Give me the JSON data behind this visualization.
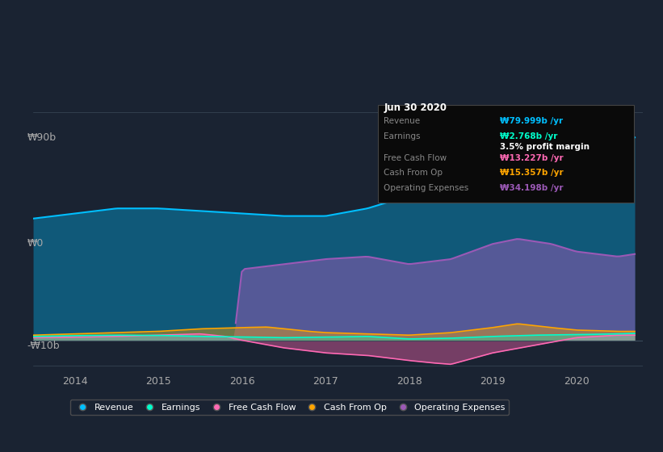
{
  "bg_color": "#1a2332",
  "plot_bg_color": "#1a2332",
  "title": "Jun 30 2020",
  "ylabel_top": "₩90b",
  "ylabel_zero": "₩0",
  "ylabel_bottom": "-₩10b",
  "x_labels": [
    "2014",
    "2015",
    "2016",
    "2017",
    "2018",
    "2019",
    "2020"
  ],
  "colors": {
    "revenue": "#00bfff",
    "earnings": "#00ffcc",
    "free_cash_flow": "#ff69b4",
    "cash_from_op": "#ffa500",
    "operating_expenses": "#9b59b6"
  },
  "legend_items": [
    "Revenue",
    "Earnings",
    "Free Cash Flow",
    "Cash From Op",
    "Operating Expenses"
  ],
  "tooltip": {
    "date": "Jun 30 2020",
    "revenue": "79.999b",
    "earnings": "2.768b",
    "profit_margin": "3.5%",
    "free_cash_flow": "13.227b",
    "cash_from_op": "15.357b",
    "operating_expenses": "34.198b"
  }
}
